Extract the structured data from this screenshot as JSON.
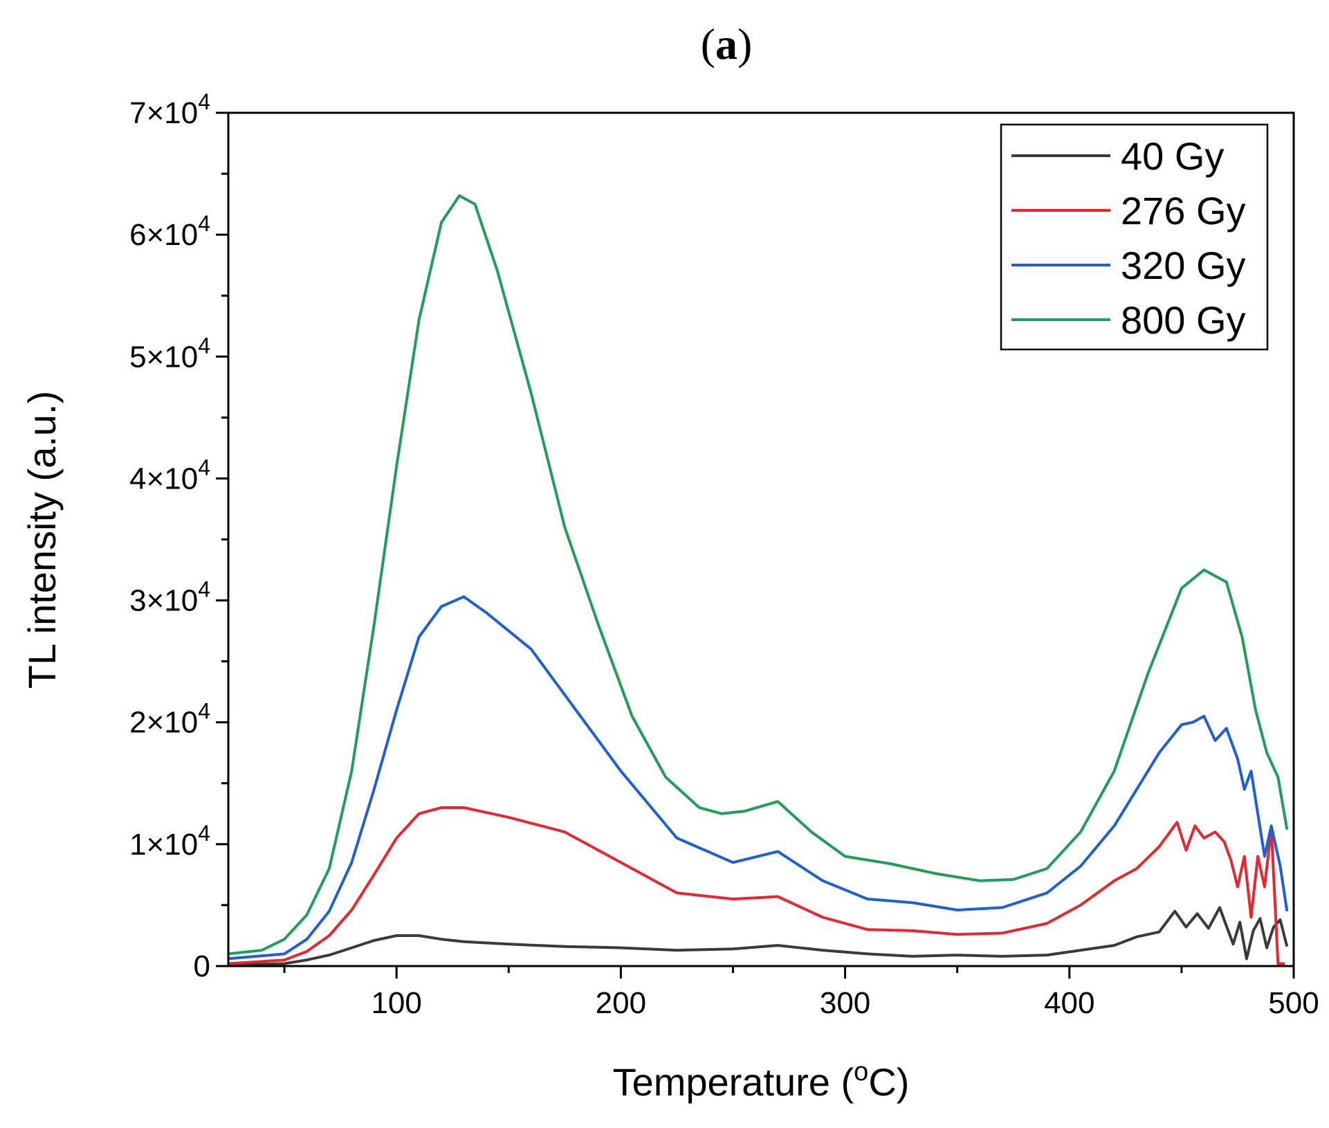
{
  "chart_data": {
    "type": "line",
    "panel_label": "a",
    "xlabel": "Temperature",
    "xlabel_unit_prefix": "o",
    "xlabel_unit": "C",
    "ylabel": "TL intensity (a.u.)",
    "xlim": [
      25,
      500
    ],
    "ylim": [
      0,
      70000
    ],
    "x_ticks": [
      100,
      200,
      300,
      400,
      500
    ],
    "y_ticks": [
      {
        "value": 0,
        "mantissa": "0",
        "exponent": ""
      },
      {
        "value": 10000,
        "mantissa": "1×10",
        "exponent": "4"
      },
      {
        "value": 20000,
        "mantissa": "2×10",
        "exponent": "4"
      },
      {
        "value": 30000,
        "mantissa": "3×10",
        "exponent": "4"
      },
      {
        "value": 40000,
        "mantissa": "4×10",
        "exponent": "4"
      },
      {
        "value": 50000,
        "mantissa": "5×10",
        "exponent": "4"
      },
      {
        "value": 60000,
        "mantissa": "6×10",
        "exponent": "4"
      },
      {
        "value": 70000,
        "mantissa": "7×10",
        "exponent": "4"
      }
    ],
    "legend_position": "top-right",
    "series": [
      {
        "name": "40 Gy",
        "color": "#3a3a3a",
        "x": [
          25,
          50,
          60,
          70,
          80,
          90,
          100,
          110,
          120,
          130,
          150,
          175,
          200,
          225,
          250,
          270,
          290,
          310,
          330,
          350,
          370,
          390,
          405,
          420,
          430,
          440,
          447,
          452,
          457,
          462,
          467,
          470,
          473,
          476,
          479,
          482,
          485,
          488,
          491,
          494,
          497
        ],
        "y": [
          100,
          200,
          500,
          900,
          1500,
          2100,
          2500,
          2500,
          2200,
          2000,
          1800,
          1600,
          1500,
          1300,
          1400,
          1700,
          1300,
          1000,
          800,
          900,
          800,
          900,
          1300,
          1700,
          2400,
          2800,
          4500,
          3200,
          4300,
          3100,
          4800,
          3300,
          1800,
          3600,
          600,
          2900,
          3900,
          1500,
          3200,
          3800,
          1600
        ]
      },
      {
        "name": "276 Gy",
        "color": "#e8262e",
        "x": [
          25,
          50,
          60,
          70,
          80,
          90,
          100,
          110,
          120,
          130,
          150,
          175,
          200,
          225,
          250,
          270,
          290,
          310,
          330,
          350,
          370,
          390,
          405,
          420,
          430,
          440,
          448,
          452,
          456,
          460,
          465,
          469,
          472,
          475,
          478,
          481,
          484,
          487,
          490,
          493,
          496
        ],
        "y": [
          200,
          500,
          1200,
          2500,
          4600,
          7500,
          10500,
          12500,
          13000,
          13000,
          12200,
          11000,
          8500,
          6000,
          5500,
          5700,
          4000,
          3000,
          2900,
          2600,
          2700,
          3500,
          5000,
          7000,
          8000,
          9800,
          11800,
          9500,
          11500,
          10500,
          11000,
          10200,
          8700,
          6500,
          9000,
          4000,
          9000,
          6500,
          11300,
          200,
          200
        ]
      },
      {
        "name": "320 Gy",
        "color": "#1c5fd6",
        "x": [
          25,
          50,
          60,
          70,
          80,
          90,
          100,
          110,
          120,
          130,
          140,
          160,
          180,
          200,
          225,
          250,
          270,
          290,
          310,
          330,
          350,
          370,
          390,
          405,
          420,
          430,
          440,
          450,
          455,
          460,
          465,
          470,
          475,
          478,
          481,
          484,
          487,
          490,
          494,
          497
        ],
        "y": [
          600,
          1000,
          2200,
          4500,
          8500,
          14500,
          21000,
          27000,
          29500,
          30300,
          29000,
          26000,
          21000,
          16000,
          10500,
          8500,
          9400,
          7000,
          5500,
          5200,
          4600,
          4800,
          6000,
          8200,
          11500,
          14500,
          17500,
          19800,
          20000,
          20500,
          18500,
          19500,
          17000,
          14500,
          16000,
          12500,
          9000,
          11500,
          8200,
          4500
        ]
      },
      {
        "name": "800 Gy",
        "color": "#1f9e55",
        "x": [
          25,
          40,
          50,
          60,
          70,
          80,
          90,
          100,
          110,
          120,
          128,
          135,
          145,
          160,
          175,
          190,
          205,
          220,
          235,
          245,
          255,
          270,
          285,
          300,
          320,
          340,
          360,
          375,
          390,
          405,
          420,
          435,
          450,
          460,
          470,
          477,
          483,
          488,
          493,
          497
        ],
        "y": [
          1000,
          1300,
          2200,
          4200,
          8000,
          16000,
          28000,
          41000,
          53000,
          61000,
          63200,
          62500,
          57000,
          47000,
          36000,
          28000,
          20500,
          15500,
          13000,
          12500,
          12700,
          13500,
          11000,
          9000,
          8400,
          7600,
          7000,
          7100,
          8000,
          11000,
          16000,
          24000,
          31000,
          32500,
          31500,
          27000,
          21000,
          17500,
          15500,
          11200
        ]
      }
    ]
  }
}
